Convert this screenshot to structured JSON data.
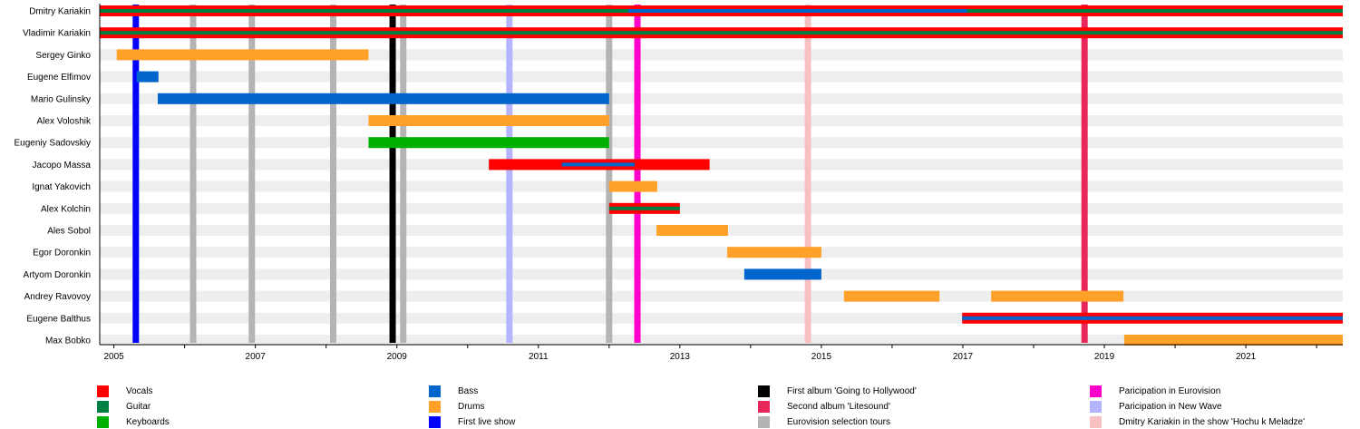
{
  "chart_data": {
    "type": "timeline",
    "title": "",
    "xlim": [
      2004.8,
      2022.37
    ],
    "x_ticks": [
      "2005",
      "2007",
      "2009",
      "2011",
      "2013",
      "2015",
      "2017",
      "2019",
      "2021"
    ],
    "minor_ticks_every_year": true,
    "grid": false,
    "colors": {
      "Vocals": "#ff0000",
      "Guitar": "#008040",
      "Keyboards": "#00b000",
      "Bass": "#0066cc",
      "Drums": "#ffa028",
      "First live show": "#0000ff",
      "First album 'Going to Hollywood'": "#000000",
      "Second album 'Litesound'": "#e8285a",
      "Eurovision selection tours": "#b4b4b4",
      "Paricipation in Eurovision": "#ff00cc",
      "Paricipation in New Wave": "#b4b4ff",
      "Dmitry Kariakin in the show 'Hochu k Meladze'": "#f8c0c0"
    },
    "members": [
      {
        "name": "Dmitry Kariakin",
        "bars": [
          {
            "role": "Vocals",
            "start": 2004.8,
            "end": 2022.37
          },
          {
            "role": "Guitar",
            "start": 2004.8,
            "end": 2022.37,
            "secondary": true
          },
          {
            "role": "Bass",
            "start": 2012.27,
            "end": 2017.06,
            "secondary": true
          }
        ]
      },
      {
        "name": "Vladimir Kariakin",
        "bars": [
          {
            "role": "Vocals",
            "start": 2004.8,
            "end": 2022.37
          },
          {
            "role": "Guitar",
            "start": 2004.8,
            "end": 2022.37,
            "secondary": true
          }
        ]
      },
      {
        "name": "Sergey Ginko",
        "bars": [
          {
            "role": "Drums",
            "start": 2005.04,
            "end": 2008.6
          }
        ]
      },
      {
        "name": "Eugene Elfimov",
        "bars": [
          {
            "role": "Bass",
            "start": 2005.32,
            "end": 2005.63
          }
        ]
      },
      {
        "name": "Mario Gulinsky",
        "bars": [
          {
            "role": "Bass",
            "start": 2005.62,
            "end": 2012.0
          }
        ]
      },
      {
        "name": "Alex Voloshik",
        "bars": [
          {
            "role": "Drums",
            "start": 2008.6,
            "end": 2012.0
          }
        ]
      },
      {
        "name": "Eugeniy Sadovskiy",
        "bars": [
          {
            "role": "Keyboards",
            "start": 2008.6,
            "end": 2012.0
          }
        ]
      },
      {
        "name": "Jacopo Massa",
        "bars": [
          {
            "role": "Vocals",
            "start": 2010.3,
            "end": 2013.42
          },
          {
            "role": "Bass",
            "start": 2011.33,
            "end": 2012.36,
            "secondary": true
          }
        ]
      },
      {
        "name": "Ignat Yakovich",
        "bars": [
          {
            "role": "Drums",
            "start": 2012.0,
            "end": 2012.68
          }
        ]
      },
      {
        "name": "Alex Kolchin",
        "bars": [
          {
            "role": "Vocals",
            "start": 2012.0,
            "end": 2013.0
          },
          {
            "role": "Guitar",
            "start": 2012.0,
            "end": 2013.0,
            "secondary": true
          }
        ]
      },
      {
        "name": "Ales Sobol",
        "bars": [
          {
            "role": "Drums",
            "start": 2012.67,
            "end": 2013.68
          }
        ]
      },
      {
        "name": "Egor Doronkin",
        "bars": [
          {
            "role": "Drums",
            "start": 2013.67,
            "end": 2015.0
          }
        ]
      },
      {
        "name": "Artyom Doronkin",
        "bars": [
          {
            "role": "Bass",
            "start": 2013.91,
            "end": 2015.0
          }
        ]
      },
      {
        "name": "Andrey Ravovoy",
        "bars": [
          {
            "role": "Drums",
            "start": 2015.32,
            "end": 2016.67
          },
          {
            "role": "Drums",
            "start": 2017.4,
            "end": 2019.27
          }
        ]
      },
      {
        "name": "Eugene Balthus",
        "bars": [
          {
            "role": "Vocals",
            "start": 2016.99,
            "end": 2022.37
          },
          {
            "role": "Bass",
            "start": 2016.99,
            "end": 2022.37,
            "secondary": true
          }
        ]
      },
      {
        "name": "Max Bobko",
        "bars": [
          {
            "role": "Drums",
            "start": 2019.28,
            "end": 2022.37
          }
        ]
      }
    ],
    "events": [
      {
        "type": "First live show",
        "date": 2005.31
      },
      {
        "type": "Eurovision selection tours",
        "date": 2006.12
      },
      {
        "type": "Eurovision selection tours",
        "date": 2006.95
      },
      {
        "type": "Eurovision selection tours",
        "date": 2008.1
      },
      {
        "type": "First album 'Going to Hollywood'",
        "date": 2008.94
      },
      {
        "type": "Eurovision selection tours",
        "date": 2009.09
      },
      {
        "type": "Paricipation in New Wave",
        "date": 2010.59
      },
      {
        "type": "Eurovision selection tours",
        "date": 2012.0
      },
      {
        "type": "Paricipation in Eurovision",
        "date": 2012.4
      },
      {
        "type": "Dmitry Kariakin in the show 'Hochu k Meladze'",
        "date": 2014.81
      },
      {
        "type": "Second album 'Litesound'",
        "date": 2018.72
      }
    ],
    "legend": {
      "placement": "bottom",
      "entries": [
        "Vocals",
        "Guitar",
        "Keyboards",
        "Bass",
        "Drums",
        "First live show",
        "First album 'Going to Hollywood'",
        "Second album 'Litesound'",
        "Eurovision selection tours",
        "Paricipation in Eurovision",
        "Paricipation in New Wave",
        "Dmitry Kariakin in the show 'Hochu k Meladze'"
      ]
    }
  }
}
